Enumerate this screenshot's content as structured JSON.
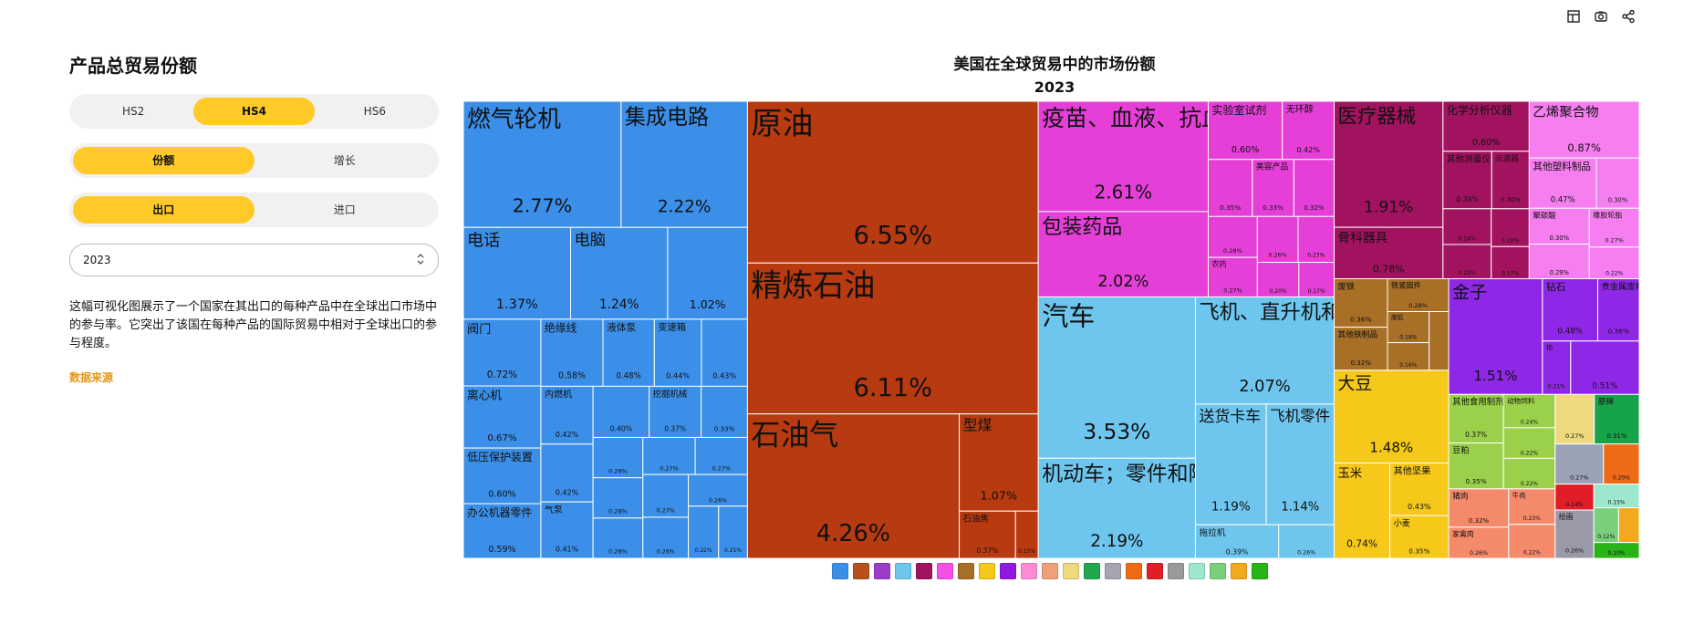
{
  "panel": {
    "heading": "产品总贸易份额",
    "hs_options": [
      "HS2",
      "HS4",
      "HS6"
    ],
    "mode_options": [
      "份额",
      "增长"
    ],
    "flow_options": [
      "出口",
      "进口"
    ],
    "year": "2023",
    "description": "这幅可视化图展示了一个国家在其出口的每种产品中在全球出口市场中的参与率。它突出了该国在每种产品的国际贸易中相对于全球出口的参与程度。",
    "source_link": "数据来源"
  },
  "toolbar_icons": [
    "table-icon",
    "camera-icon",
    "share-icon"
  ],
  "legend_colors": [
    "#3b8fe8",
    "#b8501b",
    "#9c3cc9",
    "#6ec6ee",
    "#a2135f",
    "#f54fe8",
    "#a86f26",
    "#f6c81a",
    "#9018e0",
    "#ff8ad4",
    "#efa078",
    "#efd97e",
    "#21a84d",
    "#a6a3b5",
    "#ef6a16",
    "#e11d28",
    "#9a9a9a",
    "#9de7cc",
    "#79d07a",
    "#f2a91d",
    "#28b316"
  ],
  "chart_data": {
    "type": "treemap",
    "title": "美国在全球贸易中的市场份额",
    "subtitle": "2023",
    "unit": "%",
    "groups": [
      {
        "color": "#3b8fe8",
        "items": [
          {
            "label": "燃气轮机",
            "value": 2.77
          },
          {
            "label": "集成电路",
            "value": 2.22
          },
          {
            "label": "电话",
            "value": 1.37
          },
          {
            "label": "电脑",
            "value": 1.24
          },
          {
            "label": "",
            "value": 1.02
          },
          {
            "label": "阀门",
            "value": 0.72
          },
          {
            "label": "离心机",
            "value": 0.67
          },
          {
            "label": "低压保护装置",
            "value": 0.6
          },
          {
            "label": "办公机器零件",
            "value": 0.59
          },
          {
            "label": "绝缘线",
            "value": 0.58
          },
          {
            "label": "液体泵",
            "value": 0.48
          },
          {
            "label": "变速箱",
            "value": 0.44
          },
          {
            "label": "",
            "value": 0.43
          },
          {
            "label": "内燃机",
            "value": 0.42
          },
          {
            "label": "",
            "value": 0.42
          },
          {
            "label": "气泵",
            "value": 0.41
          },
          {
            "label": "",
            "value": 0.4
          },
          {
            "label": "挖掘机械",
            "value": 0.37
          },
          {
            "label": "",
            "value": 0.33
          },
          {
            "label": "",
            "value": 0.28
          },
          {
            "label": "",
            "value": 0.28
          },
          {
            "label": "",
            "value": 0.28
          },
          {
            "label": "",
            "value": 0.27
          },
          {
            "label": "",
            "value": 0.27
          },
          {
            "label": "",
            "value": 0.27
          },
          {
            "label": "",
            "value": 0.26
          },
          {
            "label": "",
            "value": 0.26
          },
          {
            "label": "",
            "value": 0.22
          },
          {
            "label": "",
            "value": 0.21
          }
        ]
      },
      {
        "color": "#b83a10",
        "items": [
          {
            "label": "原油",
            "value": 6.55
          },
          {
            "label": "精炼石油",
            "value": 6.11
          },
          {
            "label": "石油气",
            "value": 4.26
          },
          {
            "label": "型煤",
            "value": 1.07
          },
          {
            "label": "石油焦",
            "value": 0.37
          },
          {
            "label": "",
            "value": 0.15
          }
        ]
      },
      {
        "color": "#e53fd8",
        "items": [
          {
            "label": "疫苗、血液、抗血清、毒素和培养物",
            "value": 2.61
          },
          {
            "label": "包装药品",
            "value": 2.02
          },
          {
            "label": "实验室试剂",
            "value": 0.6
          },
          {
            "label": "无环醇",
            "value": 0.42
          },
          {
            "label": "",
            "value": 0.35
          },
          {
            "label": "美容产品",
            "value": 0.33
          },
          {
            "label": "",
            "value": 0.32
          },
          {
            "label": "",
            "value": 0.28
          },
          {
            "label": "农药",
            "value": 0.27
          },
          {
            "label": "",
            "value": 0.26
          },
          {
            "label": "",
            "value": 0.23
          },
          {
            "label": "",
            "value": 0.2
          },
          {
            "label": "",
            "value": 0.17
          }
        ]
      },
      {
        "color": "#6ec6ee",
        "items": [
          {
            "label": "汽车",
            "value": 3.53
          },
          {
            "label": "机动车；零件和附件",
            "value": 2.19
          },
          {
            "label": "飞机、直升机和/或航天器",
            "value": 2.07
          },
          {
            "label": "送货卡车",
            "value": 1.19
          },
          {
            "label": "飞机零件",
            "value": 1.14
          },
          {
            "label": "拖拉机",
            "value": 0.39
          },
          {
            "label": "",
            "value": 0.26
          }
        ]
      },
      {
        "color": "#a2135f",
        "items": [
          {
            "label": "医疗器械",
            "value": 1.91
          },
          {
            "label": "骨科器具",
            "value": 0.78
          },
          {
            "label": "化学分析仪器",
            "value": 0.6
          },
          {
            "label": "其他测量仪器",
            "value": 0.39
          },
          {
            "label": "示波器",
            "value": 0.3
          },
          {
            "label": "",
            "value": 0.24
          },
          {
            "label": "",
            "value": 0.23
          },
          {
            "label": "",
            "value": 0.2
          },
          {
            "label": "",
            "value": 0.17
          }
        ]
      },
      {
        "color": "#f77ef0",
        "items": [
          {
            "label": "乙烯聚合物",
            "value": 0.87
          },
          {
            "label": "其他塑料制品",
            "value": 0.47
          },
          {
            "label": "",
            "value": 0.3
          },
          {
            "label": "聚碳酸",
            "value": 0.3
          },
          {
            "label": "",
            "value": 0.29
          },
          {
            "label": "橡胶轮胎",
            "value": 0.27
          },
          {
            "label": "",
            "value": 0.22
          }
        ]
      },
      {
        "color": "#a86f26",
        "items": [
          {
            "label": "废铁",
            "value": 0.36
          },
          {
            "label": "其他铁制品",
            "value": 0.32
          },
          {
            "label": "铁紧固件",
            "value": 0.28
          },
          {
            "label": "废铝",
            "value": 0.18
          },
          {
            "label": "",
            "value": 0.16
          },
          {
            "label": "",
            "value": 0.16
          }
        ]
      },
      {
        "color": "#f6c81a",
        "items": [
          {
            "label": "大豆",
            "value": 1.48
          },
          {
            "label": "玉米",
            "value": 0.74
          },
          {
            "label": "其他坚果",
            "value": 0.43
          },
          {
            "label": "小麦",
            "value": 0.35
          }
        ]
      },
      {
        "color": "#8f28e6",
        "items": [
          {
            "label": "金子",
            "value": 1.51
          },
          {
            "label": "钻石",
            "value": 0.48
          },
          {
            "label": "贵金属废料",
            "value": 0.36
          },
          {
            "label": "铂",
            "value": 0.21
          },
          {
            "label": "",
            "value": 0.51
          }
        ]
      },
      {
        "color": "#9bd14a",
        "items": [
          {
            "label": "其他食用制剂",
            "value": 0.37
          },
          {
            "label": "豆粕",
            "value": 0.35
          },
          {
            "label": "动物饲料",
            "value": 0.24
          },
          {
            "label": "",
            "value": 0.22
          },
          {
            "label": "",
            "value": 0.22
          }
        ]
      },
      {
        "color": "#f58a6b",
        "items": [
          {
            "label": "猪肉",
            "value": 0.32
          },
          {
            "label": "家禽肉",
            "value": 0.26
          },
          {
            "label": "牛肉",
            "value": 0.23
          },
          {
            "label": "",
            "value": 0.22
          }
        ]
      },
      {
        "color": "#efd97e",
        "items": [
          {
            "label": "",
            "value": 0.27
          }
        ]
      },
      {
        "color": "#17a34a",
        "items": [
          {
            "label": "原棉",
            "value": 0.31
          }
        ]
      },
      {
        "color": "#9aa2b5",
        "items": [
          {
            "label": "",
            "value": 0.27
          }
        ]
      },
      {
        "color": "#ef6a16",
        "items": [
          {
            "label": "",
            "value": 0.2
          }
        ]
      },
      {
        "color": "#e11d28",
        "items": [
          {
            "label": "",
            "value": 0.14
          }
        ]
      },
      {
        "color": "#9a99a8",
        "items": [
          {
            "label": "绘画",
            "value": 0.26
          }
        ]
      },
      {
        "color": "#9de7cc",
        "items": [
          {
            "label": "",
            "value": 0.15
          }
        ]
      },
      {
        "color": "#79d07a",
        "items": [
          {
            "label": "",
            "value": 0.12
          }
        ]
      },
      {
        "color": "#f2a91d",
        "items": [
          {
            "label": "",
            "value": 0.1
          }
        ]
      },
      {
        "color": "#28b316",
        "items": [
          {
            "label": "",
            "value": 0.1
          }
        ]
      }
    ]
  }
}
